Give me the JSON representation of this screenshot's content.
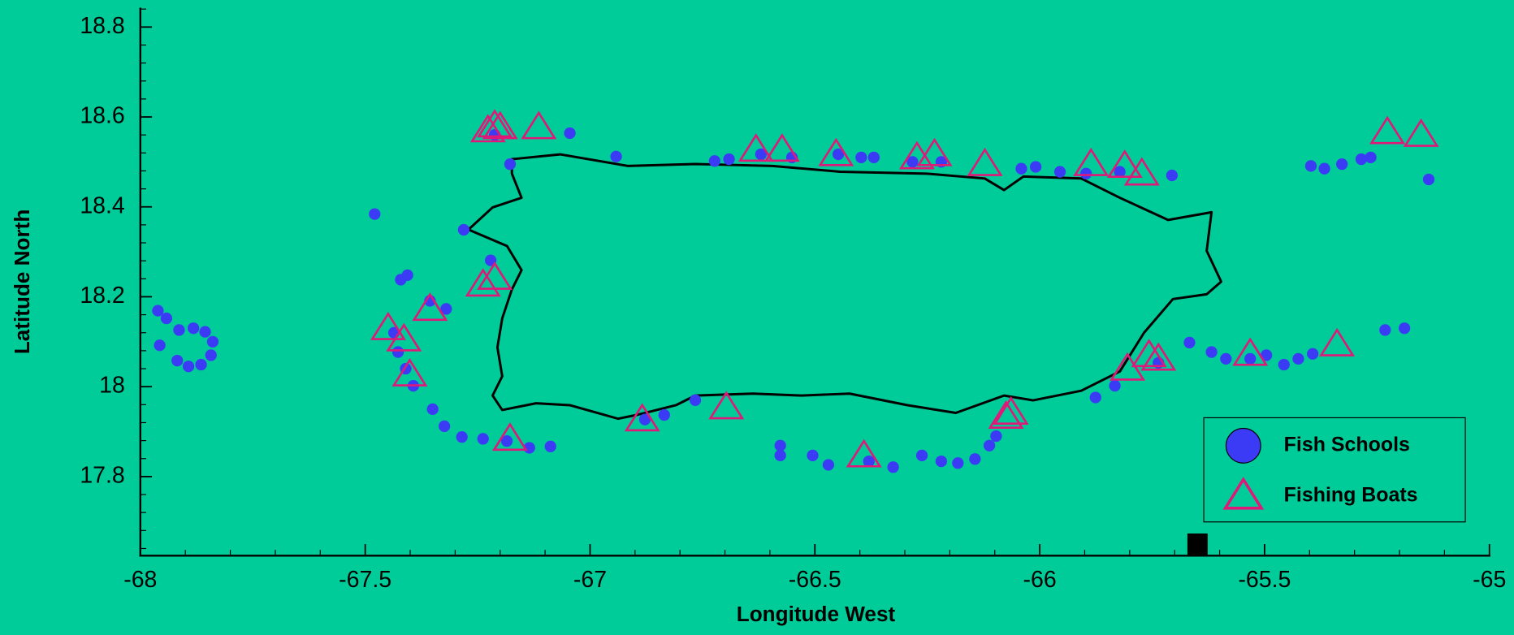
{
  "chart_data": {
    "type": "scatter",
    "xlabel": "Longitude West",
    "ylabel": "Latitude North",
    "xlim": [
      -68,
      -65
    ],
    "ylim": [
      17.624,
      18.843
    ],
    "xticks": [
      -68,
      -67.5,
      -67,
      -66.5,
      -66,
      -65.5,
      -65
    ],
    "yticks": [
      17.8,
      18,
      18.2,
      18.4,
      18.6,
      18.8
    ],
    "grid": false,
    "legend": "lower right",
    "series": [
      {
        "name": "Fish Schools",
        "color": "#3b3bf5",
        "marker": "circle",
        "x": [
          -67.961,
          -67.942,
          -67.914,
          -67.882,
          -67.856,
          -67.839,
          -67.843,
          -67.865,
          -67.893,
          -67.918,
          -67.957,
          -67.479,
          -67.421,
          -67.406,
          -67.356,
          -67.32,
          -67.436,
          -67.427,
          -67.41,
          -67.393,
          -67.35,
          -67.324,
          -67.285,
          -67.238,
          -67.185,
          -67.135,
          -67.088,
          -67.281,
          -67.221,
          -67.212,
          -67.178,
          -67.045,
          -66.942,
          -66.878,
          -66.835,
          -66.766,
          -66.723,
          -66.691,
          -66.62,
          -66.551,
          -66.448,
          -66.397,
          -66.369,
          -66.283,
          -66.219,
          -66.577,
          -66.577,
          -66.505,
          -66.47,
          -66.38,
          -66.326,
          -66.262,
          -66.219,
          -66.182,
          -66.144,
          -66.112,
          -66.097,
          -66.041,
          -66.009,
          -65.955,
          -65.897,
          -65.822,
          -65.706,
          -65.876,
          -65.833,
          -65.736,
          -65.667,
          -65.618,
          -65.586,
          -65.532,
          -65.496,
          -65.457,
          -65.425,
          -65.393,
          -65.397,
          -65.367,
          -65.328,
          -65.285,
          -65.264,
          -65.135,
          -65.232,
          -65.189
        ],
        "values": [
          18.169,
          18.152,
          18.126,
          18.13,
          18.122,
          18.1,
          18.07,
          18.049,
          18.045,
          18.058,
          18.092,
          18.384,
          18.238,
          18.248,
          18.191,
          18.173,
          18.12,
          18.077,
          18.04,
          18.002,
          17.95,
          17.912,
          17.888,
          17.884,
          17.879,
          17.864,
          17.867,
          18.349,
          18.281,
          18.56,
          18.495,
          18.564,
          18.512,
          17.927,
          17.937,
          17.97,
          18.502,
          18.506,
          18.517,
          18.51,
          18.517,
          18.51,
          18.51,
          18.5,
          18.5,
          17.869,
          17.847,
          17.847,
          17.826,
          17.834,
          17.821,
          17.847,
          17.834,
          17.83,
          17.839,
          17.869,
          17.89,
          18.485,
          18.489,
          18.478,
          18.474,
          18.478,
          18.47,
          17.976,
          18.002,
          18.053,
          18.098,
          18.077,
          18.062,
          18.062,
          18.07,
          18.049,
          18.062,
          18.073,
          18.491,
          18.485,
          18.495,
          18.506,
          18.51,
          18.461,
          18.126,
          18.13
        ]
      },
      {
        "name": "Fishing Boats",
        "color": "#e0187a",
        "marker": "triangle",
        "x": [
          -67.227,
          -67.212,
          -67.2,
          -67.114,
          -67.238,
          -67.212,
          -67.449,
          -67.414,
          -67.356,
          -67.401,
          -67.178,
          -66.884,
          -66.697,
          -66.631,
          -66.573,
          -66.453,
          -66.273,
          -66.234,
          -66.122,
          -66.391,
          -66.075,
          -66.064,
          -65.886,
          -65.811,
          -65.773,
          -65.805,
          -65.757,
          -65.736,
          -65.532,
          -65.339,
          -65.227,
          -65.152
        ],
        "values": [
          18.57,
          18.581,
          18.577,
          18.577,
          18.227,
          18.242,
          18.13,
          18.105,
          18.173,
          18.027,
          17.884,
          17.927,
          17.954,
          18.527,
          18.527,
          18.517,
          18.51,
          18.517,
          18.495,
          17.847,
          17.933,
          17.942,
          18.495,
          18.491,
          18.474,
          18.04,
          18.07,
          18.062,
          18.073,
          18.094,
          18.566,
          18.56
        ]
      }
    ]
  }
}
